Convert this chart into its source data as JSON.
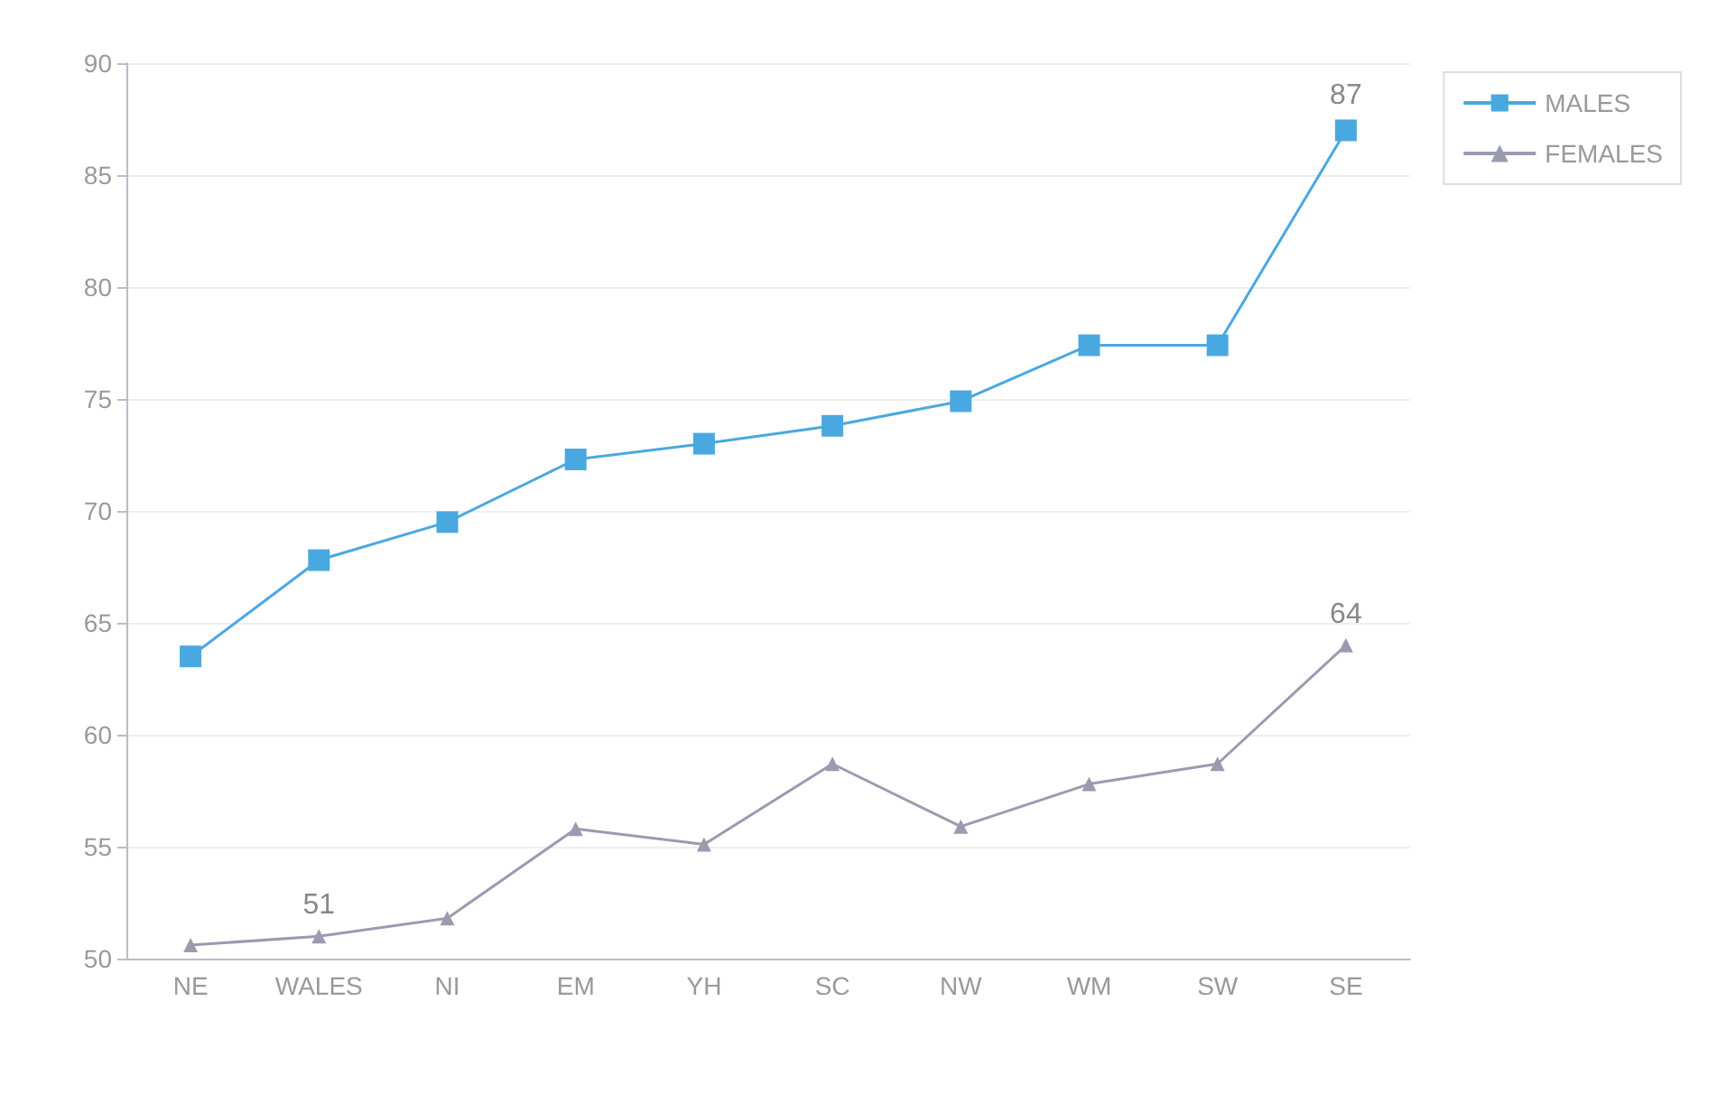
{
  "chart_data": {
    "type": "line",
    "categories": [
      "NE",
      "WALES",
      "NI",
      "EM",
      "YH",
      "SC",
      "NW",
      "WM",
      "SW",
      "SE"
    ],
    "series": [
      {
        "name": "MALES",
        "color": "#4aa8e0",
        "marker": "square",
        "values": [
          63.5,
          67.8,
          69.5,
          72.3,
          73.0,
          73.8,
          74.9,
          77.4,
          77.4,
          87
        ],
        "value_labels": [
          null,
          null,
          null,
          null,
          null,
          null,
          null,
          null,
          null,
          "87"
        ]
      },
      {
        "name": "FEMALES",
        "color": "#9a9ab0",
        "marker": "triangle",
        "values": [
          50.6,
          51,
          51.8,
          55.8,
          55.1,
          58.7,
          55.9,
          57.8,
          58.7,
          64
        ],
        "value_labels": [
          null,
          "51",
          null,
          null,
          null,
          null,
          null,
          null,
          null,
          "64"
        ]
      }
    ],
    "ylim": [
      50,
      90
    ],
    "yticks": [
      50,
      55,
      60,
      65,
      70,
      75,
      80,
      85,
      90
    ],
    "grid": "y",
    "legend": "top right"
  }
}
